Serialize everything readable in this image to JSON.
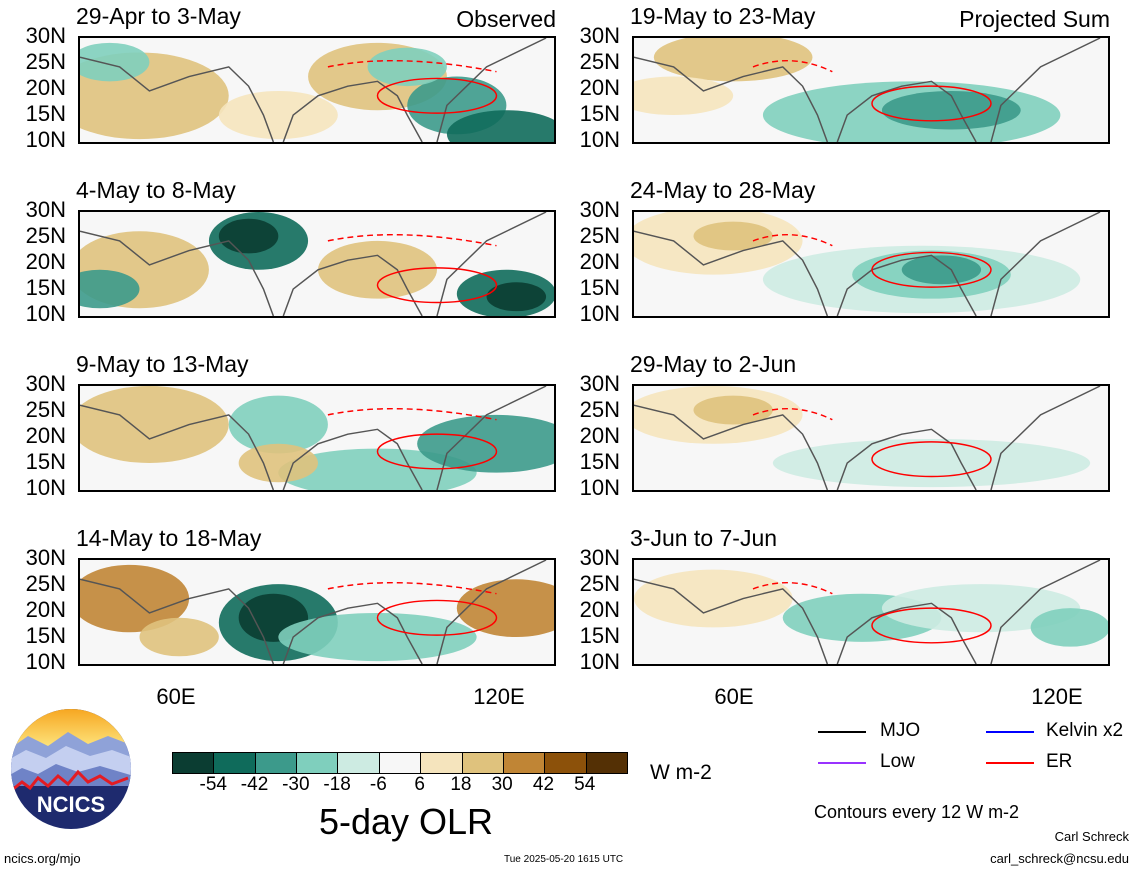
{
  "panels": [
    {
      "title": "29-Apr to 3-May",
      "tag": "Observed"
    },
    {
      "title": "19-May to 23-May",
      "tag": "Projected Sum"
    },
    {
      "title": "4-May to 8-May",
      "tag": ""
    },
    {
      "title": "24-May to 28-May",
      "tag": ""
    },
    {
      "title": "9-May to 13-May",
      "tag": ""
    },
    {
      "title": "29-May to 2-Jun",
      "tag": ""
    },
    {
      "title": "14-May to 18-May",
      "tag": ""
    },
    {
      "title": "3-Jun to 7-Jun",
      "tag": ""
    }
  ],
  "lat_labels": [
    "30N",
    "25N",
    "20N",
    "15N",
    "10N"
  ],
  "lon_labels": [
    "60E",
    "120E"
  ],
  "colorbar": {
    "colors": [
      "#0b3d32",
      "#0f6b5b",
      "#3c9a8b",
      "#7fcfbd",
      "#cdebe2",
      "#f7f7f7",
      "#f5e4bd",
      "#dfc27d",
      "#c08535",
      "#8c510a",
      "#543005"
    ],
    "labels": [
      "-54",
      "-42",
      "-30",
      "-18",
      "-6",
      "6",
      "18",
      "30",
      "42",
      "54"
    ],
    "units": "W m-2",
    "title": "5-day OLR"
  },
  "legend": {
    "mjo": "MJO",
    "kelvin": "Kelvin x2",
    "low": "Low",
    "er": "ER",
    "mjo_color": "#000000",
    "kelvin_color": "#0000ff",
    "low_color": "#9933ff",
    "er_color": "#ff0000",
    "contours": "Contours every 12 W m-2"
  },
  "logo": {
    "text": "NCICS"
  },
  "footer": {
    "url": "ncics.org/mjo",
    "timestamp": "Tue 2025-05-20 1615 UTC",
    "author": "Carl Schreck",
    "email": "carl_schreck@ncsu.edu"
  }
}
